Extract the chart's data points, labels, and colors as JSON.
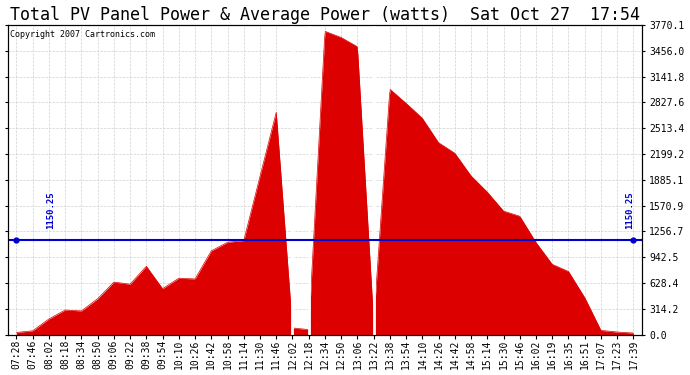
{
  "title": "Total PV Panel Power & Average Power (watts)  Sat Oct 27  17:54",
  "copyright": "Copyright 2007 Cartronics.com",
  "avg_line_value": 1150.25,
  "y_max": 3770.1,
  "y_min": 0.0,
  "y_ticks": [
    0.0,
    314.2,
    628.4,
    942.5,
    1256.7,
    1570.9,
    1885.1,
    2199.2,
    2513.4,
    2827.6,
    3141.8,
    3456.0,
    3770.1
  ],
  "x_labels": [
    "07:28",
    "07:46",
    "08:02",
    "08:18",
    "08:34",
    "08:50",
    "09:06",
    "09:22",
    "09:38",
    "09:54",
    "10:10",
    "10:26",
    "10:42",
    "10:58",
    "11:14",
    "11:30",
    "11:46",
    "12:02",
    "12:18",
    "12:34",
    "12:50",
    "13:06",
    "13:22",
    "13:38",
    "13:54",
    "14:10",
    "14:26",
    "14:42",
    "14:58",
    "15:14",
    "15:30",
    "15:46",
    "16:02",
    "16:19",
    "16:35",
    "16:51",
    "17:07",
    "17:23",
    "17:39"
  ],
  "background_color": "#ffffff",
  "grid_color": "#cccccc",
  "fill_color": "#dd0000",
  "line_color": "#0000cc",
  "title_fontsize": 12,
  "label_fontsize": 7
}
